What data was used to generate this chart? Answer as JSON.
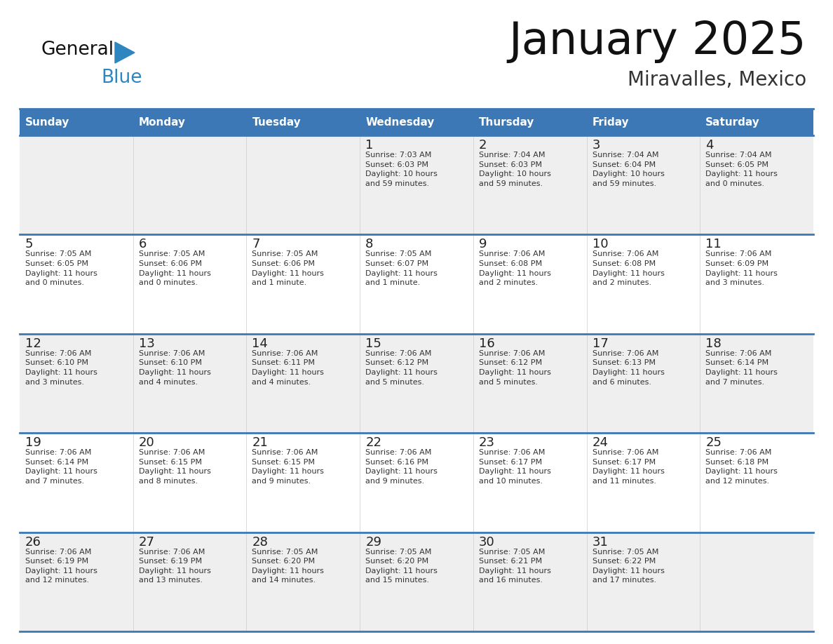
{
  "title": "January 2025",
  "subtitle": "Miravalles, Mexico",
  "days_of_week": [
    "Sunday",
    "Monday",
    "Tuesday",
    "Wednesday",
    "Thursday",
    "Friday",
    "Saturday"
  ],
  "header_bg": "#3b78b5",
  "header_text": "#ffffff",
  "row_bg_odd": "#efefef",
  "row_bg_even": "#ffffff",
  "border_color": "#3b78b5",
  "day_num_color": "#222222",
  "cell_text_color": "#333333",
  "title_color": "#111111",
  "subtitle_color": "#333333",
  "logo_general_color": "#111111",
  "logo_blue_color": "#2e86c1",
  "calendar": [
    [
      {
        "day": "",
        "info": ""
      },
      {
        "day": "",
        "info": ""
      },
      {
        "day": "",
        "info": ""
      },
      {
        "day": "1",
        "info": "Sunrise: 7:03 AM\nSunset: 6:03 PM\nDaylight: 10 hours\nand 59 minutes."
      },
      {
        "day": "2",
        "info": "Sunrise: 7:04 AM\nSunset: 6:03 PM\nDaylight: 10 hours\nand 59 minutes."
      },
      {
        "day": "3",
        "info": "Sunrise: 7:04 AM\nSunset: 6:04 PM\nDaylight: 10 hours\nand 59 minutes."
      },
      {
        "day": "4",
        "info": "Sunrise: 7:04 AM\nSunset: 6:05 PM\nDaylight: 11 hours\nand 0 minutes."
      }
    ],
    [
      {
        "day": "5",
        "info": "Sunrise: 7:05 AM\nSunset: 6:05 PM\nDaylight: 11 hours\nand 0 minutes."
      },
      {
        "day": "6",
        "info": "Sunrise: 7:05 AM\nSunset: 6:06 PM\nDaylight: 11 hours\nand 0 minutes."
      },
      {
        "day": "7",
        "info": "Sunrise: 7:05 AM\nSunset: 6:06 PM\nDaylight: 11 hours\nand 1 minute."
      },
      {
        "day": "8",
        "info": "Sunrise: 7:05 AM\nSunset: 6:07 PM\nDaylight: 11 hours\nand 1 minute."
      },
      {
        "day": "9",
        "info": "Sunrise: 7:06 AM\nSunset: 6:08 PM\nDaylight: 11 hours\nand 2 minutes."
      },
      {
        "day": "10",
        "info": "Sunrise: 7:06 AM\nSunset: 6:08 PM\nDaylight: 11 hours\nand 2 minutes."
      },
      {
        "day": "11",
        "info": "Sunrise: 7:06 AM\nSunset: 6:09 PM\nDaylight: 11 hours\nand 3 minutes."
      }
    ],
    [
      {
        "day": "12",
        "info": "Sunrise: 7:06 AM\nSunset: 6:10 PM\nDaylight: 11 hours\nand 3 minutes."
      },
      {
        "day": "13",
        "info": "Sunrise: 7:06 AM\nSunset: 6:10 PM\nDaylight: 11 hours\nand 4 minutes."
      },
      {
        "day": "14",
        "info": "Sunrise: 7:06 AM\nSunset: 6:11 PM\nDaylight: 11 hours\nand 4 minutes."
      },
      {
        "day": "15",
        "info": "Sunrise: 7:06 AM\nSunset: 6:12 PM\nDaylight: 11 hours\nand 5 minutes."
      },
      {
        "day": "16",
        "info": "Sunrise: 7:06 AM\nSunset: 6:12 PM\nDaylight: 11 hours\nand 5 minutes."
      },
      {
        "day": "17",
        "info": "Sunrise: 7:06 AM\nSunset: 6:13 PM\nDaylight: 11 hours\nand 6 minutes."
      },
      {
        "day": "18",
        "info": "Sunrise: 7:06 AM\nSunset: 6:14 PM\nDaylight: 11 hours\nand 7 minutes."
      }
    ],
    [
      {
        "day": "19",
        "info": "Sunrise: 7:06 AM\nSunset: 6:14 PM\nDaylight: 11 hours\nand 7 minutes."
      },
      {
        "day": "20",
        "info": "Sunrise: 7:06 AM\nSunset: 6:15 PM\nDaylight: 11 hours\nand 8 minutes."
      },
      {
        "day": "21",
        "info": "Sunrise: 7:06 AM\nSunset: 6:15 PM\nDaylight: 11 hours\nand 9 minutes."
      },
      {
        "day": "22",
        "info": "Sunrise: 7:06 AM\nSunset: 6:16 PM\nDaylight: 11 hours\nand 9 minutes."
      },
      {
        "day": "23",
        "info": "Sunrise: 7:06 AM\nSunset: 6:17 PM\nDaylight: 11 hours\nand 10 minutes."
      },
      {
        "day": "24",
        "info": "Sunrise: 7:06 AM\nSunset: 6:17 PM\nDaylight: 11 hours\nand 11 minutes."
      },
      {
        "day": "25",
        "info": "Sunrise: 7:06 AM\nSunset: 6:18 PM\nDaylight: 11 hours\nand 12 minutes."
      }
    ],
    [
      {
        "day": "26",
        "info": "Sunrise: 7:06 AM\nSunset: 6:19 PM\nDaylight: 11 hours\nand 12 minutes."
      },
      {
        "day": "27",
        "info": "Sunrise: 7:06 AM\nSunset: 6:19 PM\nDaylight: 11 hours\nand 13 minutes."
      },
      {
        "day": "28",
        "info": "Sunrise: 7:05 AM\nSunset: 6:20 PM\nDaylight: 11 hours\nand 14 minutes."
      },
      {
        "day": "29",
        "info": "Sunrise: 7:05 AM\nSunset: 6:20 PM\nDaylight: 11 hours\nand 15 minutes."
      },
      {
        "day": "30",
        "info": "Sunrise: 7:05 AM\nSunset: 6:21 PM\nDaylight: 11 hours\nand 16 minutes."
      },
      {
        "day": "31",
        "info": "Sunrise: 7:05 AM\nSunset: 6:22 PM\nDaylight: 11 hours\nand 17 minutes."
      },
      {
        "day": "",
        "info": ""
      }
    ]
  ]
}
